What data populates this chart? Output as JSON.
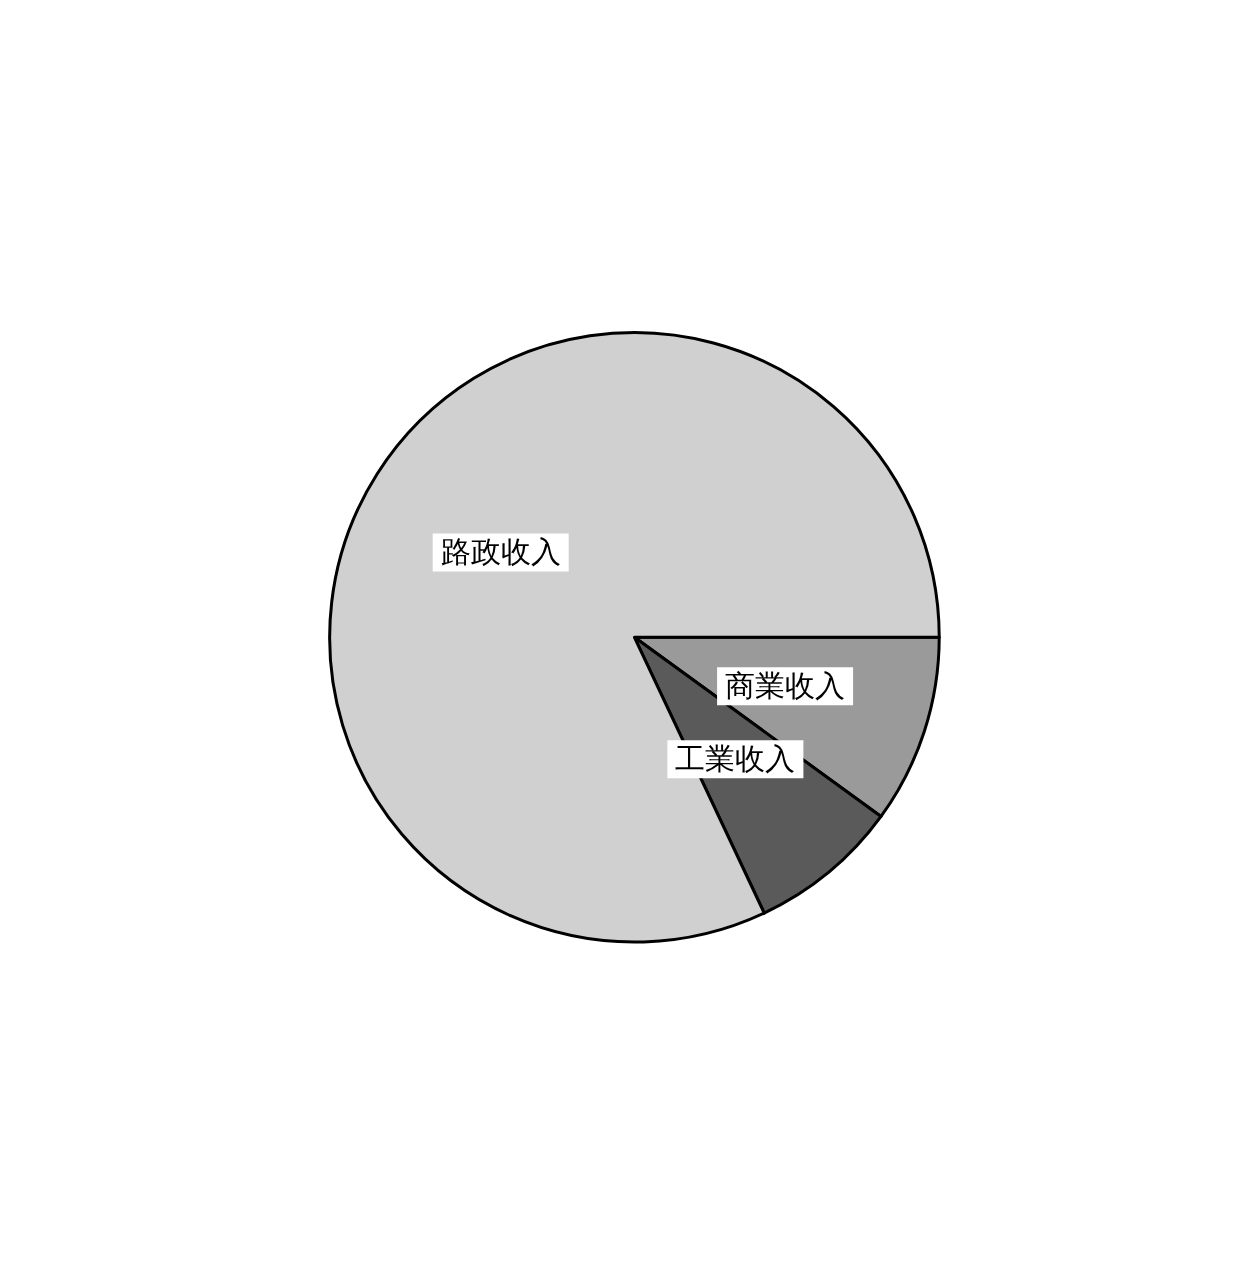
{
  "chart_data": {
    "type": "pie",
    "categories": [
      "商業收入",
      "工業收入",
      "路政收入"
    ],
    "values": [
      10,
      8,
      82
    ],
    "colors": [
      "#9a9a9a",
      "#5a5a5a",
      "#d0d0d0"
    ]
  }
}
